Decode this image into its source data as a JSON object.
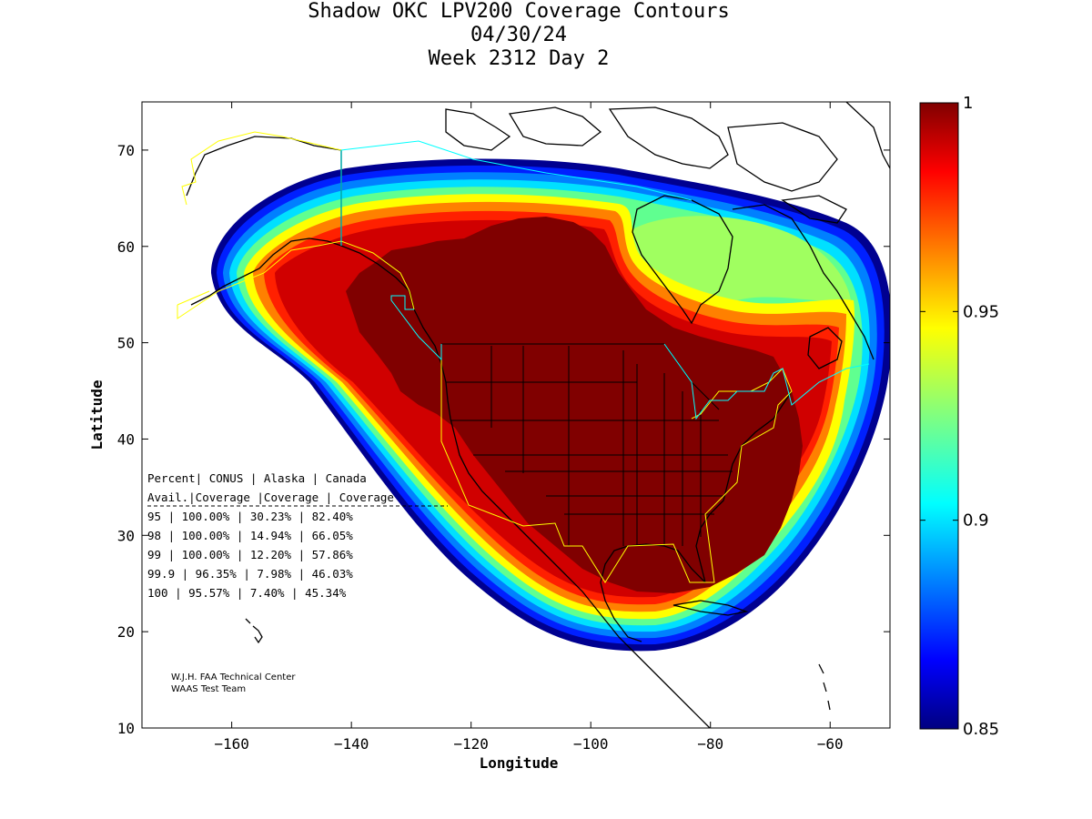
{
  "title": {
    "line1": "Shadow OKC LPV200 Coverage Contours",
    "line2": "04/30/24",
    "line3": "Week 2312 Day 2"
  },
  "axes": {
    "xlabel": "Longitude",
    "ylabel": "Latitude",
    "xticks": [
      -160,
      -140,
      -120,
      -100,
      -80,
      -60
    ],
    "yticks": [
      10,
      20,
      30,
      40,
      50,
      60,
      70
    ],
    "xlim": [
      -175,
      -50
    ],
    "ylim": [
      10,
      75
    ]
  },
  "colorbar": {
    "min": 0.85,
    "max": 1,
    "ticks": [
      "1",
      "0.95",
      "0.9",
      "0.85"
    ],
    "colormap": "jet"
  },
  "table": {
    "header1": "Percent| CONUS   | Alaska  | Canada",
    "header2": " Avail.|Coverage |Coverage | Coverage",
    "rows": [
      "  95   | 100.00%  | 30.23% | 82.40%",
      "  98   | 100.00%  | 14.94% | 66.05%",
      "  99   | 100.00%  | 12.20% | 57.86%",
      "99.9   | 96.35%  | 7.98% | 46.03%",
      " 100   | 95.57%  | 7.40% | 45.34%"
    ]
  },
  "credit": {
    "line1": "W.J.H. FAA Technical Center",
    "line2": "WAAS Test Team"
  },
  "colors": {
    "full_coverage": "#800000",
    "alaska_boundary": "#ffff00",
    "canada_boundary": "#00ffff"
  }
}
